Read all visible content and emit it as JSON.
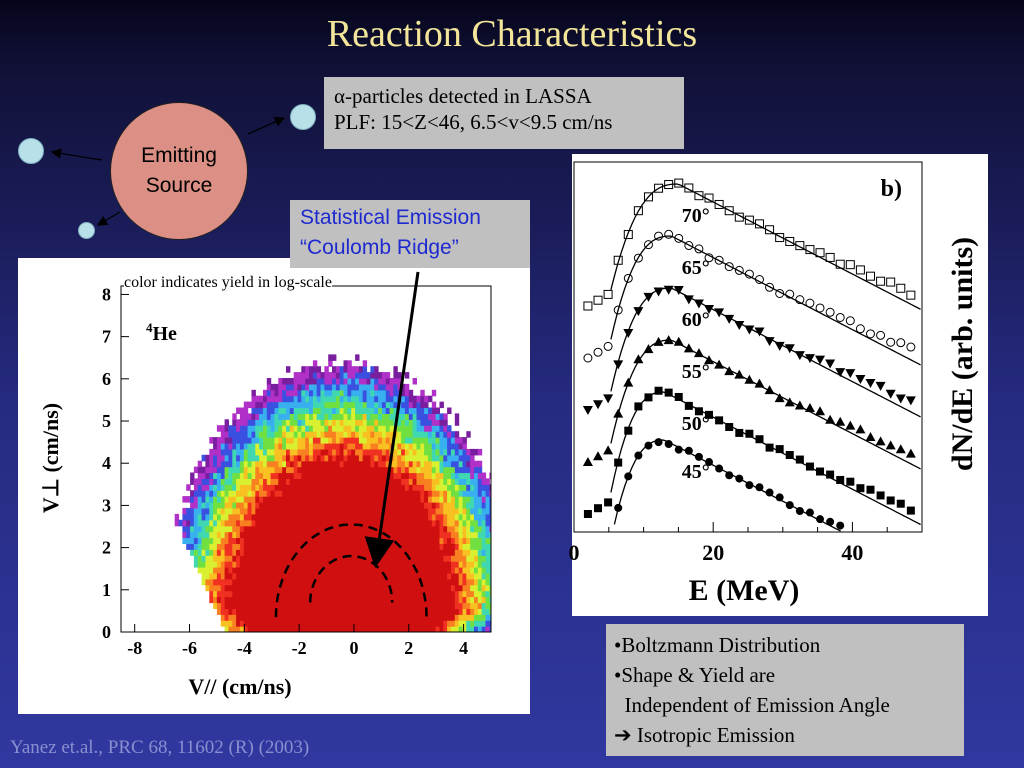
{
  "slide": {
    "title": "Reaction Characteristics",
    "emitter_line1": "Emitting",
    "emitter_line2": "Source",
    "lassa_line1": "α-particles detected in LASSA",
    "lassa_line2": "PLF: 15<Z<46, 6.5<v<9.5 cm/ns",
    "stat_line1": "Statistical Emission",
    "stat_line2": "“Coulomb Ridge”",
    "color_note": "color indicates yield in log-scale",
    "bullets": [
      "•Boltzmann Distribution",
      "•Shape & Yield are",
      "  Independent of Emission Angle",
      " Isotropic Emission"
    ],
    "arrow_glyph": "➔",
    "citation": "Yanez et.al., PRC 68, 11602 (R) (2003)"
  },
  "chart_data": [
    {
      "type": "heatmap",
      "annotation": "4He",
      "xlabel": "V// (cm/ns)",
      "ylabel": "V⊥ (cm/ns)",
      "xlim": [
        -8.5,
        5
      ],
      "ylim": [
        0,
        8.2
      ],
      "xticks": [
        -8,
        -6,
        -4,
        -2,
        0,
        2,
        4
      ],
      "yticks": [
        0,
        1,
        2,
        3,
        4,
        5,
        6,
        7,
        8
      ],
      "ridge_center": [
        -0.1,
        0.6
      ],
      "ridge_radius": 2.2,
      "colors": [
        "#7a1ea0",
        "#b030c8",
        "#3a50e0",
        "#38b0f0",
        "#40d8b0",
        "#70e040",
        "#d8f030",
        "#f8c020",
        "#f88020",
        "#f03020",
        "#d01010"
      ]
    },
    {
      "type": "scatter",
      "panel_label": "b)",
      "xlabel": "E (MeV)",
      "ylabel": "dN/dE (arb. units)",
      "xlim": [
        0,
        50
      ],
      "xticks": [
        0,
        20,
        40
      ],
      "series": [
        {
          "name": "70°",
          "marker": "square-open",
          "peak": 15,
          "offset": 0
        },
        {
          "name": "65°",
          "marker": "circle-open",
          "peak": 14,
          "offset": 1
        },
        {
          "name": "60°",
          "marker": "triangle-down",
          "peak": 14,
          "offset": 2
        },
        {
          "name": "55°",
          "marker": "triangle-up",
          "peak": 14,
          "offset": 3
        },
        {
          "name": "50°",
          "marker": "square",
          "peak": 13,
          "offset": 4
        },
        {
          "name": "45°",
          "marker": "circle",
          "peak": 13,
          "offset": 5
        }
      ]
    }
  ]
}
